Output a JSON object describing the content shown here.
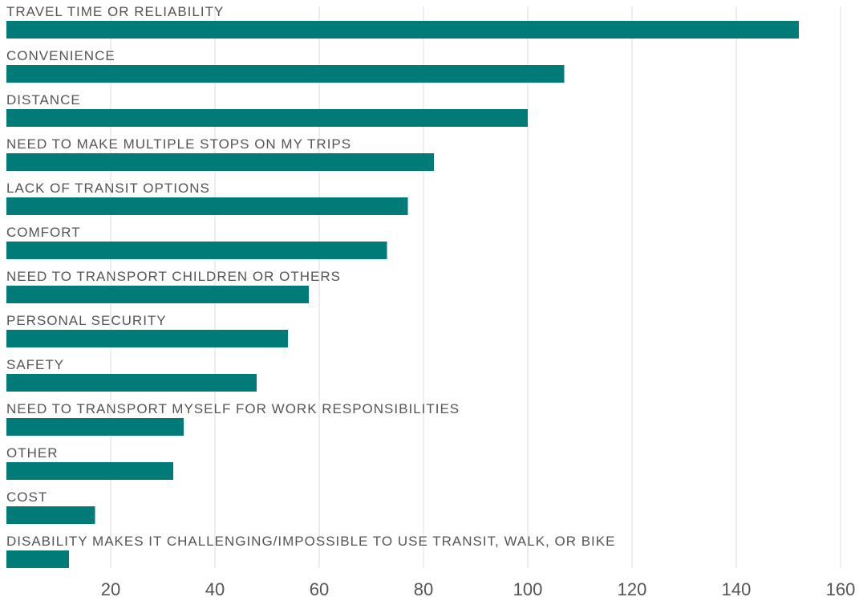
{
  "chart_data": {
    "type": "bar",
    "orientation": "horizontal",
    "title": "",
    "xlabel": "",
    "ylabel": "",
    "categories": [
      "TRAVEL TIME OR RELIABILITY",
      "CONVENIENCE",
      "DISTANCE",
      "NEED TO MAKE MULTIPLE STOPS ON MY TRIPS",
      "LACK OF TRANSIT OPTIONS",
      "COMFORT",
      "NEED TO TRANSPORT CHILDREN OR OTHERS",
      "PERSONAL SECURITY",
      "SAFETY",
      "NEED TO TRANSPORT MYSELF FOR WORK RESPONSIBILITIES",
      "OTHER",
      "COST",
      "DISABILITY MAKES IT CHALLENGING/IMPOSSIBLE TO USE TRANSIT, WALK, OR BIKE"
    ],
    "values": [
      152,
      107,
      100,
      82,
      77,
      73,
      58,
      54,
      48,
      34,
      32,
      17,
      12
    ],
    "xlim": [
      0,
      160
    ],
    "xticks": [
      20,
      40,
      60,
      80,
      100,
      120,
      140,
      160
    ],
    "grid": "vertical",
    "legend": "none",
    "bar_color": "#007b78"
  }
}
